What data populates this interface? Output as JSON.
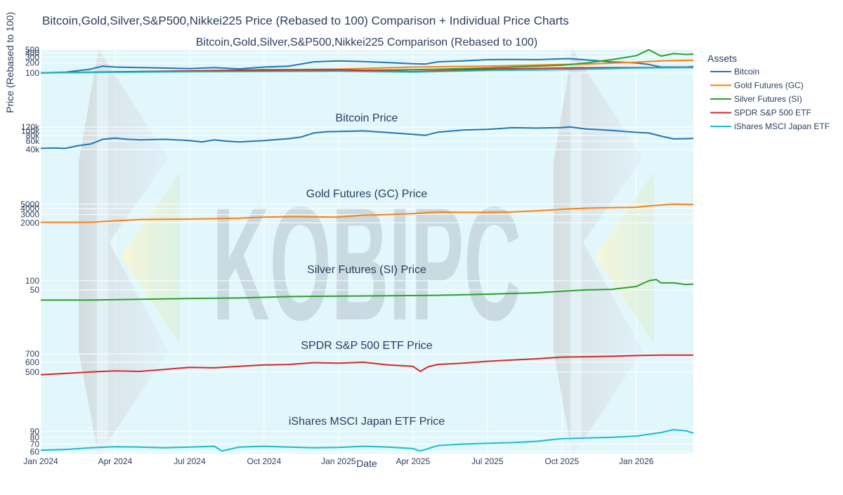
{
  "colors": {
    "plot_bg": "#e2f7fb",
    "grid": "#ffffff",
    "text": "#2a3f5f",
    "bitcoin": "#1f77b4",
    "gold": "#ff7f0e",
    "silver": "#2ca02c",
    "spy": "#d62728",
    "ewj": "#17becf"
  },
  "header": {
    "main_title": "Bitcoin,Gold,Silver,S&P500,Nikkei225 Price (Rebased to 100) Comparison + Individual Price Charts"
  },
  "watermark": {
    "text": "KOBIPC"
  },
  "axes": {
    "xlabel": "Date",
    "ylabel": "Price (Rebased to 100)"
  },
  "legend": {
    "title": "Assets",
    "placement": "top-right",
    "items": [
      {
        "label": "Bitcoin",
        "color": "#1f77b4"
      },
      {
        "label": "Gold Futures (GC)",
        "color": "#ff7f0e"
      },
      {
        "label": "Silver Futures (SI)",
        "color": "#2ca02c"
      },
      {
        "label": "SPDR S&P 500 ETF",
        "color": "#d62728"
      },
      {
        "label": "iShares MSCI Japan ETF",
        "color": "#17becf"
      }
    ]
  },
  "chart_data": {
    "type": "line",
    "x_type": "date",
    "x_ticks": [
      "Jan 2024",
      "Apr 2024",
      "Jul 2024",
      "Oct 2024",
      "Jan 2025",
      "Apr 2025",
      "Jul 2025",
      "Oct 2025",
      "Jan 2026"
    ],
    "x_tick_months": [
      0,
      3,
      6,
      9,
      12,
      15,
      18,
      21,
      24
    ],
    "x_range_months": [
      0,
      26.3
    ],
    "panels": [
      {
        "id": "comparison",
        "title": "Bitcoin,Gold,Silver,S&P500,Nikkei225 Comparison (Rebased to 100)",
        "ylim": [
          90,
          520
        ],
        "y_ticks": [
          100,
          200,
          300,
          400,
          500
        ],
        "y_tick_labels": [
          "100",
          "200",
          "300",
          "400",
          "500"
        ],
        "series": [
          {
            "name": "Bitcoin",
            "color": "#1f77b4",
            "t": [
              0,
              1,
              2,
              2.5,
              3,
              4,
              5,
              6,
              7,
              8,
              9,
              10,
              11,
              12,
              13,
              14,
              15,
              15.5,
              16,
              17,
              18,
              19,
              20,
              21,
              21.3,
              22,
              23,
              24,
              24.5,
              25,
              26,
              26.3
            ],
            "v": [
              100,
              105,
              130,
              160,
              150,
              145,
              140,
              135,
              145,
              132,
              150,
              160,
              215,
              230,
              220,
              205,
              190,
              185,
              215,
              230,
              250,
              255,
              250,
              265,
              270,
              245,
              215,
              200,
              180,
              150,
              150,
              155
            ]
          },
          {
            "name": "Gold Futures (GC)",
            "color": "#ff7f0e",
            "t": [
              0,
              3,
              6,
              9,
              12,
              15,
              18,
              21,
              22,
              24,
              25,
              26,
              26.3
            ],
            "v": [
              100,
              105,
              112,
              125,
              130,
              150,
              160,
              180,
              185,
              210,
              230,
              240,
              240
            ]
          },
          {
            "name": "Silver Futures (SI)",
            "color": "#2ca02c",
            "t": [
              0,
              3,
              6,
              9,
              12,
              15,
              18,
              21,
              22,
              23,
              24,
              24.5,
              25,
              25.5,
              26,
              26.3
            ],
            "v": [
              100,
              108,
              115,
              125,
              118,
              125,
              140,
              170,
              200,
              250,
              330,
              500,
              320,
              380,
              360,
              370
            ]
          },
          {
            "name": "SPDR S&P 500 ETF",
            "color": "#d62728",
            "t": [
              0,
              6,
              12,
              15,
              18,
              21,
              24,
              26.3
            ],
            "v": [
              100,
              115,
              125,
              110,
              130,
              140,
              145,
              145
            ]
          },
          {
            "name": "iShares MSCI Japan ETF",
            "color": "#17becf",
            "t": [
              0,
              6,
              12,
              15,
              18,
              21,
              24,
              26.3
            ],
            "v": [
              100,
              108,
              112,
              105,
              118,
              125,
              140,
              145
            ]
          }
        ]
      },
      {
        "id": "bitcoin",
        "title": "Bitcoin Price",
        "ylim": [
          37000,
          125000
        ],
        "y_ticks": [
          40000,
          60000,
          80000,
          100000,
          120000
        ],
        "y_tick_labels": [
          "40k",
          "60k",
          "80k",
          "100k",
          "120k"
        ],
        "series": [
          {
            "name": "Bitcoin",
            "color": "#1f77b4",
            "t": [
              0,
              0.5,
              1,
              1.5,
              2,
              2.5,
              3,
              3.5,
              4,
              5,
              6,
              6.5,
              7,
              7.5,
              8,
              9,
              10,
              10.5,
              11,
              11.5,
              12,
              13,
              14,
              15,
              15.5,
              16,
              17,
              18,
              19,
              20,
              21,
              21.3,
              22,
              23,
              24,
              24.5,
              25,
              25.5,
              26,
              26.3
            ],
            "v": [
              42000,
              43000,
              42000,
              48000,
              52000,
              66000,
              70000,
              66000,
              64000,
              66000,
              62000,
              58000,
              64000,
              60000,
              58000,
              62000,
              68000,
              74000,
              90000,
              96000,
              97000,
              100000,
              92000,
              84000,
              80000,
              94000,
              104000,
              108000,
              117000,
              115000,
              118000,
              122000,
              110000,
              102000,
              93000,
              90000,
              77000,
              67000,
              68000,
              69000
            ]
          }
        ]
      },
      {
        "id": "gold",
        "title": "Gold Futures (GC) Price",
        "ylim": [
          1700,
          5700
        ],
        "y_ticks": [
          2000,
          3000,
          4000,
          5000
        ],
        "y_tick_labels": [
          "2000",
          "3000",
          "4000",
          "5000"
        ],
        "series": [
          {
            "name": "Gold Futures (GC)",
            "color": "#ff7f0e",
            "t": [
              0,
              2,
              3,
              4,
              6,
              8,
              9,
              10,
              12,
              13,
              14,
              15,
              16,
              17,
              18,
              19,
              20,
              21,
              22,
              23,
              24,
              24.5,
              25,
              25.5,
              26,
              26.3
            ],
            "v": [
              2050,
              2050,
              2200,
              2350,
              2400,
              2500,
              2650,
              2700,
              2650,
              2900,
              3000,
              3150,
              3400,
              3350,
              3350,
              3400,
              3600,
              3900,
              4100,
              4200,
              4300,
              4600,
              4800,
              5000,
              4950,
              4950
            ]
          }
        ]
      },
      {
        "id": "silver",
        "title": "Silver Futures (SI) Price",
        "ylim": [
          20,
          130
        ],
        "y_ticks": [
          50,
          100
        ],
        "y_tick_labels": [
          "50",
          "100"
        ],
        "series": [
          {
            "name": "Silver Futures (SI)",
            "color": "#2ca02c",
            "t": [
              0,
              2,
              4,
              6,
              8,
              10,
              12,
              14,
              16,
              18,
              20,
              21,
              22,
              23,
              24,
              24.5,
              24.8,
              25,
              25.5,
              26,
              26.3
            ],
            "v": [
              23,
              23,
              24.5,
              26,
              27,
              30,
              31,
              32,
              33,
              36,
              40,
              45,
              50,
              52,
              65,
              100,
              110,
              85,
              85,
              75,
              78
            ]
          }
        ]
      },
      {
        "id": "spy",
        "title": "SPDR S&P 500 ETF Price",
        "ylim": [
          455,
          720
        ],
        "y_ticks": [
          500,
          600,
          700
        ],
        "y_tick_labels": [
          "500",
          "600",
          "700"
        ],
        "series": [
          {
            "name": "SPDR S&P 500 ETF",
            "color": "#d62728",
            "t": [
              0,
              2,
              3,
              4,
              5,
              6,
              7,
              8,
              9,
              10,
              11,
              12,
              13,
              14,
              15,
              15.3,
              15.6,
              16,
              17,
              18,
              19,
              20,
              21,
              22,
              23,
              24,
              25,
              26,
              26.3
            ],
            "v": [
              475,
              500,
              510,
              505,
              525,
              545,
              540,
              555,
              570,
              575,
              595,
              590,
              600,
              570,
              555,
              505,
              550,
              575,
              590,
              610,
              625,
              640,
              660,
              665,
              670,
              680,
              685,
              685,
              685
            ]
          }
        ]
      },
      {
        "id": "ewj",
        "title": "iShares MSCI Japan ETF Price",
        "ylim": [
          58,
          97
        ],
        "y_ticks": [
          60,
          70,
          80,
          90
        ],
        "y_tick_labels": [
          "60",
          "70",
          "80",
          "90"
        ],
        "series": [
          {
            "name": "iShares MSCI Japan ETF",
            "color": "#17becf",
            "t": [
              0,
              1,
              2,
              3,
              4,
              5,
              6,
              7,
              7.3,
              8,
              9,
              10,
              11,
              12,
              13,
              14,
              15,
              15.3,
              16,
              17,
              18,
              19,
              20,
              21,
              22,
              23,
              24,
              25,
              25.5,
              26,
              26.3
            ],
            "v": [
              62,
              63,
              65,
              66.5,
              66,
              65,
              66,
              67,
              61,
              66,
              67,
              66,
              65,
              65.5,
              67,
              66,
              64,
              61,
              68,
              70,
              71,
              72,
              74,
              78,
              79,
              80,
              82,
              88,
              93,
              91,
              87
            ]
          }
        ]
      }
    ]
  }
}
